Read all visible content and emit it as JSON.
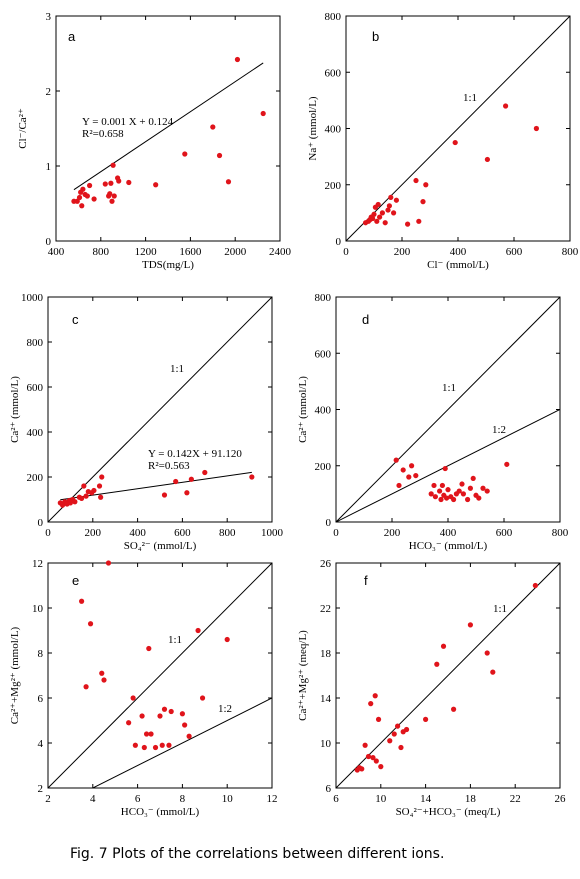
{
  "caption": "Fig. 7 Plots of the correlations between different ions.",
  "chart_data": [
    {
      "type": "scatter",
      "panel": "a",
      "xlabel": "TDS(mg/L)",
      "ylabel": "Cl⁻/Ca²⁺",
      "xlim": [
        400,
        2400
      ],
      "ylim": [
        0,
        3
      ],
      "xticks": [
        400,
        800,
        1200,
        1600,
        2000,
        2400
      ],
      "yticks": [
        0,
        1,
        2,
        3
      ],
      "x": [
        560,
        590,
        610,
        620,
        630,
        640,
        660,
        680,
        700,
        740,
        840,
        870,
        880,
        890,
        900,
        910,
        920,
        950,
        960,
        1050,
        1290,
        1550,
        1800,
        1860,
        1940,
        2020,
        2250
      ],
      "y": [
        0.53,
        0.53,
        0.58,
        0.65,
        0.47,
        0.69,
        0.62,
        0.6,
        0.74,
        0.56,
        0.76,
        0.6,
        0.63,
        0.77,
        0.53,
        1.01,
        0.6,
        0.84,
        0.8,
        0.78,
        0.75,
        1.16,
        1.52,
        1.14,
        0.79,
        2.42,
        1.7
      ],
      "fit": {
        "slope": 0.001,
        "intercept": 0.124
      },
      "annotations": [
        "Y = 0.001 X + 0.124",
        "R²=0.658"
      ]
    },
    {
      "type": "scatter",
      "panel": "b",
      "xlabel": "Cl⁻ (mmol/L)",
      "ylabel": "Na⁺ (mmol/L)",
      "xlim": [
        0,
        800
      ],
      "ylim": [
        0,
        800
      ],
      "xticks": [
        0,
        200,
        400,
        600,
        800
      ],
      "yticks": [
        0,
        200,
        400,
        600,
        800
      ],
      "x": [
        70,
        80,
        85,
        90,
        95,
        100,
        105,
        110,
        115,
        120,
        130,
        140,
        150,
        155,
        160,
        170,
        180,
        220,
        250,
        260,
        275,
        285,
        390,
        505,
        570,
        680
      ],
      "y": [
        65,
        70,
        75,
        85,
        80,
        95,
        120,
        70,
        130,
        85,
        100,
        65,
        110,
        125,
        155,
        100,
        145,
        60,
        215,
        70,
        140,
        200,
        350,
        290,
        480,
        400
      ],
      "reference_lines": [
        {
          "label": "1:1",
          "slope": 1
        }
      ]
    },
    {
      "type": "scatter",
      "panel": "c",
      "xlabel": "SO₄²⁻ (mmol/L)",
      "ylabel": "Ca²⁺ (mmol/L)",
      "xlim": [
        0,
        1000
      ],
      "ylim": [
        0,
        1000
      ],
      "xticks": [
        0,
        200,
        400,
        600,
        800,
        1000
      ],
      "yticks": [
        0,
        200,
        400,
        600,
        800,
        1000
      ],
      "x": [
        55,
        65,
        75,
        85,
        95,
        100,
        110,
        120,
        140,
        150,
        160,
        170,
        180,
        195,
        205,
        230,
        235,
        240,
        520,
        570,
        620,
        640,
        700,
        910
      ],
      "y": [
        85,
        75,
        90,
        80,
        95,
        85,
        100,
        90,
        110,
        105,
        160,
        115,
        135,
        130,
        140,
        160,
        110,
        200,
        120,
        180,
        130,
        190,
        220,
        200
      ],
      "fit": {
        "slope": 0.142,
        "intercept": 91.12
      },
      "annotations": [
        "Y = 0.142X + 91.120",
        "R²=0.563"
      ],
      "reference_lines": [
        {
          "label": "1:1",
          "slope": 1
        }
      ]
    },
    {
      "type": "scatter",
      "panel": "d",
      "xlabel": "HCO₃⁻ (mmol/L)",
      "ylabel": "Ca²⁺ (mmol/L)",
      "xlim": [
        0,
        800
      ],
      "ylim": [
        0,
        800
      ],
      "xticks": [
        0,
        200,
        400,
        600,
        800
      ],
      "yticks": [
        0,
        200,
        400,
        600,
        800
      ],
      "x": [
        215,
        225,
        240,
        260,
        270,
        285,
        340,
        350,
        355,
        370,
        375,
        380,
        385,
        390,
        395,
        400,
        410,
        420,
        430,
        440,
        450,
        455,
        470,
        480,
        490,
        500,
        510,
        525,
        540,
        610
      ],
      "y": [
        220,
        130,
        185,
        160,
        200,
        165,
        100,
        130,
        90,
        110,
        80,
        130,
        95,
        190,
        85,
        115,
        90,
        80,
        100,
        110,
        135,
        100,
        80,
        120,
        155,
        95,
        85,
        120,
        110,
        205
      ],
      "reference_lines": [
        {
          "label": "1:1",
          "slope": 1
        },
        {
          "label": "1:2",
          "slope": 0.5
        }
      ]
    },
    {
      "type": "scatter",
      "panel": "e",
      "xlabel": "HCO₃⁻ (mmol/L)",
      "ylabel": "Ca²⁺+Mg²⁺ (mmol/L)",
      "xlim": [
        2,
        12
      ],
      "ylim": [
        2,
        12
      ],
      "xticks": [
        2,
        4,
        6,
        8,
        10,
        12
      ],
      "yticks": [
        2,
        4,
        6,
        8,
        10,
        12
      ],
      "x": [
        3.5,
        3.7,
        3.9,
        4.4,
        4.5,
        4.7,
        5.6,
        5.8,
        5.9,
        6.2,
        6.3,
        6.4,
        6.5,
        6.6,
        6.8,
        7.0,
        7.1,
        7.2,
        7.4,
        7.5,
        8.0,
        8.1,
        8.3,
        8.7,
        8.9,
        10.0
      ],
      "y": [
        10.3,
        6.5,
        9.3,
        7.1,
        6.8,
        12.0,
        4.9,
        6.0,
        3.9,
        5.2,
        3.8,
        4.4,
        8.2,
        4.4,
        3.8,
        5.2,
        3.9,
        5.5,
        3.9,
        5.4,
        5.3,
        4.8,
        4.3,
        9.0,
        6.0,
        8.6
      ],
      "reference_lines": [
        {
          "label": "1:1",
          "slope": 1
        },
        {
          "label": "1:2",
          "slope": 0.5
        }
      ]
    },
    {
      "type": "scatter",
      "panel": "f",
      "xlabel": "SO₄²⁻+HCO₃⁻ (meq/L)",
      "ylabel": "Ca²⁺+Mg²⁺ (meq/L)",
      "xlim": [
        6,
        26
      ],
      "ylim": [
        6,
        26
      ],
      "xticks": [
        6,
        10,
        14,
        18,
        22,
        26
      ],
      "yticks": [
        6,
        10,
        14,
        18,
        22,
        26
      ],
      "x": [
        7.9,
        8.1,
        8.3,
        8.6,
        8.9,
        9.1,
        9.3,
        9.5,
        9.6,
        9.8,
        10.0,
        10.8,
        11.2,
        11.5,
        11.8,
        12.0,
        12.3,
        14.0,
        15.0,
        15.6,
        16.5,
        18.0,
        19.5,
        20.0,
        23.8
      ],
      "y": [
        7.6,
        7.8,
        7.7,
        9.8,
        8.8,
        13.5,
        8.7,
        14.2,
        8.4,
        12.1,
        7.9,
        10.2,
        10.8,
        11.5,
        9.6,
        11.0,
        11.2,
        12.1,
        17.0,
        18.6,
        13.0,
        20.5,
        18.0,
        16.3,
        24.0
      ],
      "reference_lines": [
        {
          "label": "1:1",
          "slope": 1
        }
      ]
    }
  ]
}
